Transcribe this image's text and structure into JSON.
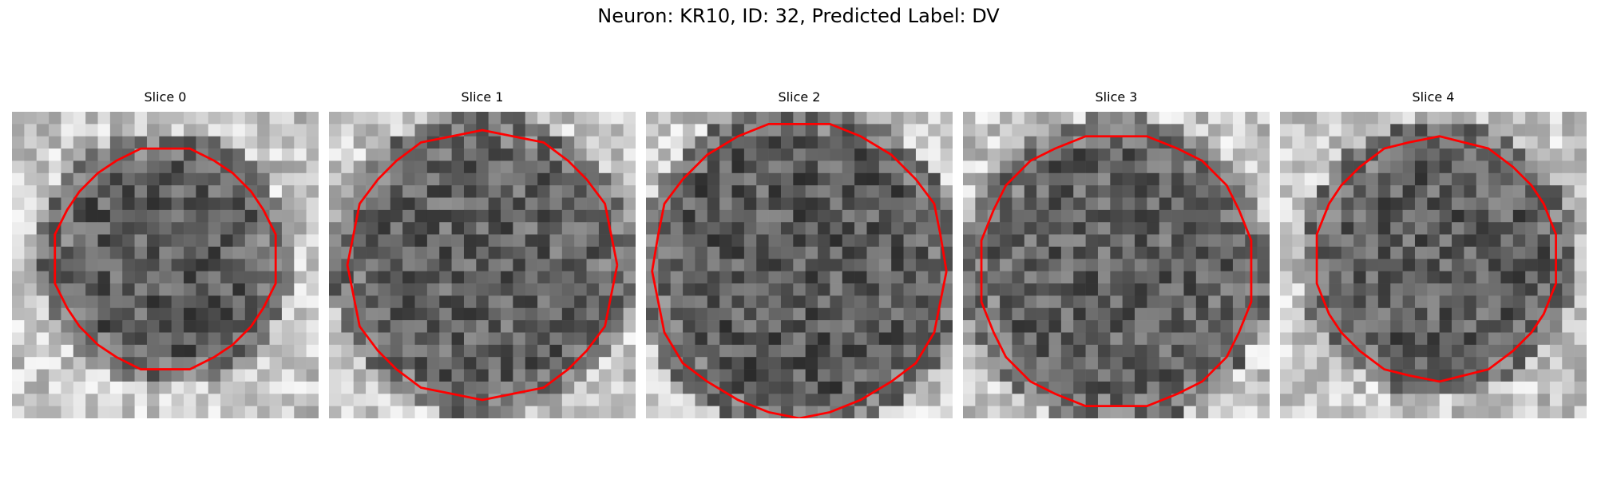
{
  "title": "Neuron: KR10, ID: 32, Predicted Label: DV",
  "contour_color": "#ff0000",
  "panels": [
    {
      "title": "Slice 0",
      "seed": 11,
      "center": [
        12.5,
        12.0
      ],
      "radius": 9.0,
      "darkness": 0.62
    },
    {
      "title": "Slice 1",
      "seed": 23,
      "center": [
        12.5,
        12.5
      ],
      "radius": 11.0,
      "darkness": 0.55
    },
    {
      "title": "Slice 2",
      "seed": 37,
      "center": [
        12.5,
        12.8
      ],
      "radius": 12.0,
      "darkness": 0.66
    },
    {
      "title": "Slice 3",
      "seed": 41,
      "center": [
        12.5,
        13.0
      ],
      "radius": 11.2,
      "darkness": 0.55
    },
    {
      "title": "Slice 4",
      "seed": 53,
      "center": [
        12.8,
        12.0
      ],
      "radius": 9.8,
      "darkness": 0.6
    }
  ]
}
